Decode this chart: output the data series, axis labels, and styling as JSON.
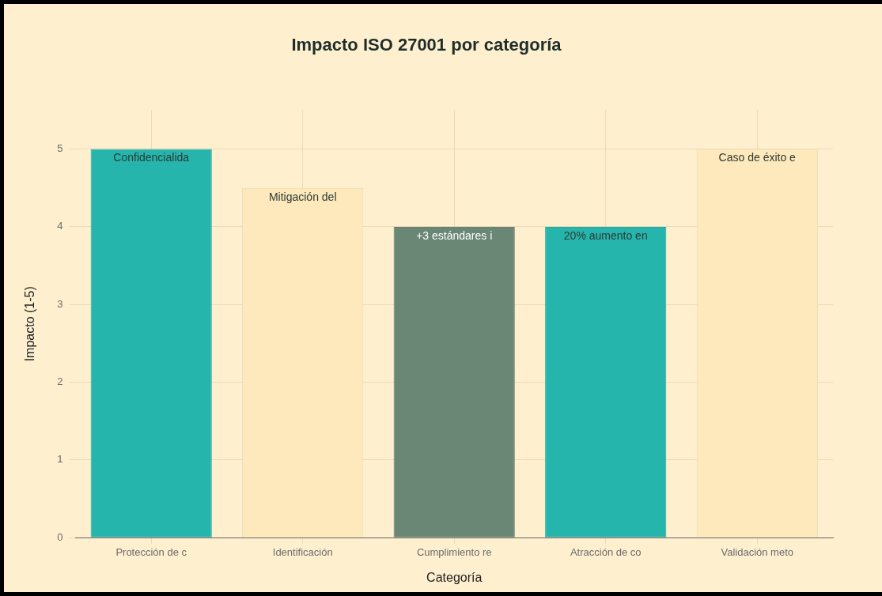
{
  "chart_data": {
    "type": "bar",
    "title": "Impacto ISO 27001 por categoría",
    "xlabel": "Categoría",
    "ylabel": "Impacto (1-5)",
    "categories": [
      "Protección de c",
      "Identificación",
      "Cumplimiento re",
      "Atracción de co",
      "Validación meto"
    ],
    "values": [
      5,
      4.5,
      4,
      4,
      5
    ],
    "colors": [
      "#26b5ac",
      "#fde9bb",
      "#6a8775",
      "#26b5ac",
      "#fde9bb"
    ],
    "ylim": [
      0,
      5.5
    ],
    "yticks": [
      0,
      1,
      2,
      3,
      4,
      5
    ],
    "grid": true,
    "legend": false,
    "annotations": [
      {
        "text": "Confidencialida",
        "x": "Protección de c",
        "y": 5
      },
      {
        "text": "Mitigación del",
        "x": "Identificación",
        "y": 4.5
      },
      {
        "text": "+3 estándares i",
        "x": "Cumplimiento re",
        "y": 4
      },
      {
        "text": "20% aumento en",
        "x": "Atracción de co",
        "y": 4
      },
      {
        "text": "Caso de éxito e",
        "x": "Validación meto",
        "y": 5
      }
    ]
  }
}
